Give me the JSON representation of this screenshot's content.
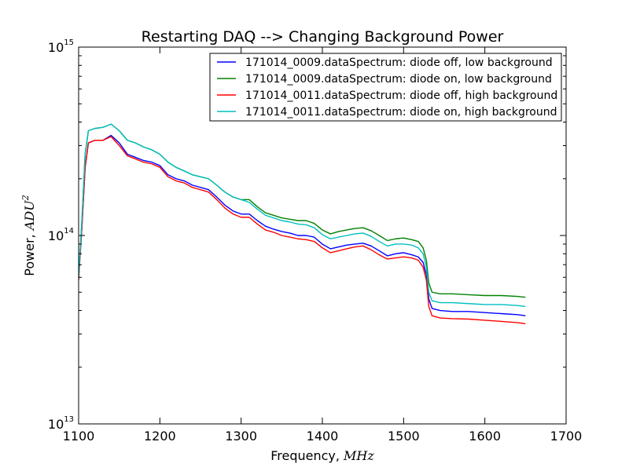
{
  "chart_data": {
    "type": "line",
    "title": "Restarting DAQ --> Changing Background Power",
    "xlabel_prefix": "Frequency, ",
    "xlabel_unit": "MHz",
    "ylabel_prefix": "Power, ",
    "ylabel_unit": "ADU",
    "ylabel_unit_exp": "2",
    "xlim": [
      1100,
      1700
    ],
    "ylim": [
      10000000000000.0,
      1000000000000000.0
    ],
    "yscale": "log",
    "grid": false,
    "legend_position": "top-right",
    "x_ticks": [
      "1100",
      "1200",
      "1300",
      "1400",
      "1500",
      "1600",
      "1700"
    ],
    "y_ticks": [
      {
        "base": "10",
        "exp": "13"
      },
      {
        "base": "10",
        "exp": "14"
      },
      {
        "base": "10",
        "exp": "15"
      }
    ],
    "x": [
      1100,
      1104,
      1108,
      1112,
      1120,
      1130,
      1140,
      1150,
      1160,
      1170,
      1180,
      1190,
      1200,
      1210,
      1220,
      1230,
      1240,
      1250,
      1260,
      1270,
      1280,
      1290,
      1300,
      1310,
      1320,
      1330,
      1340,
      1350,
      1360,
      1370,
      1380,
      1390,
      1400,
      1410,
      1420,
      1430,
      1440,
      1450,
      1460,
      1470,
      1480,
      1490,
      1500,
      1510,
      1518,
      1524,
      1528,
      1531,
      1535,
      1545,
      1560,
      1580,
      1600,
      1620,
      1640,
      1650
    ],
    "series": [
      {
        "name": "171014_0009.dataSpectrum: diode off, low background",
        "color": "#0000ff",
        "values": [
          60000000000000.0,
          110000000000000.0,
          230000000000000.0,
          310000000000000.0,
          320000000000000.0,
          320000000000000.0,
          340000000000000.0,
          310000000000000.0,
          270000000000000.0,
          260000000000000.0,
          250000000000000.0,
          245000000000000.0,
          235000000000000.0,
          210000000000000.0,
          200000000000000.0,
          195000000000000.0,
          185000000000000.0,
          180000000000000.0,
          175000000000000.0,
          160000000000000.0,
          145000000000000.0,
          135000000000000.0,
          130000000000000.0,
          130000000000000.0,
          120000000000000.0,
          112000000000000.0,
          108000000000000.0,
          105000000000000.0,
          103000000000000.0,
          100000000000000.0,
          100000000000000.0,
          98000000000000.0,
          90000000000000.0,
          85000000000000.0,
          87000000000000.0,
          89000000000000.0,
          90000000000000.0,
          91000000000000.0,
          88000000000000.0,
          83000000000000.0,
          78000000000000.0,
          80000000000000.0,
          81000000000000.0,
          79000000000000.0,
          77000000000000.0,
          72000000000000.0,
          62000000000000.0,
          46000000000000.0,
          41000000000000.0,
          40000000000000.0,
          39500000000000.0,
          39500000000000.0,
          39000000000000.0,
          38500000000000.0,
          38000000000000.0,
          37500000000000.0
        ]
      },
      {
        "name": "171014_0009.dataSpectrum: diode on, low background",
        "color": "#008000",
        "values": [
          60000000000000.0,
          120000000000000.0,
          270000000000000.0,
          360000000000000.0,
          370000000000000.0,
          375000000000000.0,
          390000000000000.0,
          360000000000000.0,
          320000000000000.0,
          310000000000000.0,
          295000000000000.0,
          285000000000000.0,
          270000000000000.0,
          245000000000000.0,
          230000000000000.0,
          220000000000000.0,
          210000000000000.0,
          205000000000000.0,
          200000000000000.0,
          185000000000000.0,
          170000000000000.0,
          160000000000000.0,
          155000000000000.0,
          155000000000000.0,
          142000000000000.0,
          132000000000000.0,
          128000000000000.0,
          124000000000000.0,
          122000000000000.0,
          120000000000000.0,
          120000000000000.0,
          116000000000000.0,
          107000000000000.0,
          102000000000000.0,
          105000000000000.0,
          107000000000000.0,
          109000000000000.0,
          110000000000000.0,
          106000000000000.0,
          100000000000000.0,
          94000000000000.0,
          96000000000000.0,
          97000000000000.0,
          95000000000000.0,
          93000000000000.0,
          86000000000000.0,
          74000000000000.0,
          56000000000000.0,
          50000000000000.0,
          49000000000000.0,
          49000000000000.0,
          48500000000000.0,
          48000000000000.0,
          48000000000000.0,
          47500000000000.0,
          47000000000000.0
        ]
      },
      {
        "name": "171014_0011.dataSpectrum: diode off, high background",
        "color": "#ff0000",
        "values": [
          58000000000000.0,
          110000000000000.0,
          230000000000000.0,
          310000000000000.0,
          320000000000000.0,
          320000000000000.0,
          335000000000000.0,
          300000000000000.0,
          265000000000000.0,
          255000000000000.0,
          245000000000000.0,
          240000000000000.0,
          230000000000000.0,
          205000000000000.0,
          195000000000000.0,
          190000000000000.0,
          180000000000000.0,
          175000000000000.0,
          170000000000000.0,
          155000000000000.0,
          140000000000000.0,
          130000000000000.0,
          125000000000000.0,
          125000000000000.0,
          115000000000000.0,
          107000000000000.0,
          104000000000000.0,
          100000000000000.0,
          98000000000000.0,
          96000000000000.0,
          95000000000000.0,
          93000000000000.0,
          86000000000000.0,
          81000000000000.0,
          83000000000000.0,
          85000000000000.0,
          87000000000000.0,
          88000000000000.0,
          84000000000000.0,
          79000000000000.0,
          75000000000000.0,
          76000000000000.0,
          77000000000000.0,
          76000000000000.0,
          74000000000000.0,
          68000000000000.0,
          58000000000000.0,
          42000000000000.0,
          37500000000000.0,
          36500000000000.0,
          36200000000000.0,
          36000000000000.0,
          35500000000000.0,
          35000000000000.0,
          34500000000000.0,
          34000000000000.0
        ]
      },
      {
        "name": "171014_0011.dataSpectrum: diode on, high background",
        "color": "#00bfbf",
        "values": [
          60000000000000.0,
          120000000000000.0,
          270000000000000.0,
          360000000000000.0,
          370000000000000.0,
          375000000000000.0,
          390000000000000.0,
          360000000000000.0,
          320000000000000.0,
          310000000000000.0,
          295000000000000.0,
          285000000000000.0,
          270000000000000.0,
          245000000000000.0,
          230000000000000.0,
          220000000000000.0,
          210000000000000.0,
          205000000000000.0,
          200000000000000.0,
          185000000000000.0,
          170000000000000.0,
          160000000000000.0,
          155000000000000.0,
          150000000000000.0,
          138000000000000.0,
          128000000000000.0,
          124000000000000.0,
          120000000000000.0,
          118000000000000.0,
          115000000000000.0,
          114000000000000.0,
          110000000000000.0,
          101000000000000.0,
          96000000000000.0,
          98000000000000.0,
          100000000000000.0,
          102000000000000.0,
          103000000000000.0,
          99000000000000.0,
          93000000000000.0,
          88000000000000.0,
          90000000000000.0,
          90000000000000.0,
          89000000000000.0,
          86000000000000.0,
          80000000000000.0,
          68000000000000.0,
          50000000000000.0,
          45000000000000.0,
          44000000000000.0,
          44000000000000.0,
          43500000000000.0,
          43000000000000.0,
          43000000000000.0,
          42500000000000.0,
          42000000000000.0
        ]
      }
    ]
  }
}
